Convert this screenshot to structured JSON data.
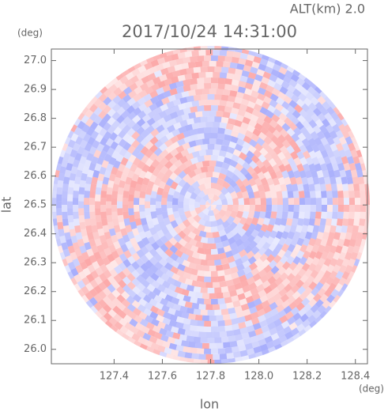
{
  "chart_data": {
    "type": "radar-field",
    "title": "2017/10/24 14:31:00",
    "subtitle": "ALT(km) 2.0",
    "x_label": "lon",
    "y_label": "lat",
    "x_unit": "(deg)",
    "y_unit": "(deg)",
    "xlim": [
      127.14,
      128.45
    ],
    "ylim": [
      25.95,
      27.04
    ],
    "xticks": [
      127.4,
      127.6,
      127.8,
      {
        "value": 128.0,
        "label": "128.0"
      },
      128.2,
      128.4
    ],
    "yticks": [
      {
        "value": 26.0,
        "label": "26.0"
      },
      26.1,
      26.2,
      26.3,
      26.4,
      26.5,
      26.6,
      26.7,
      26.8,
      26.9,
      {
        "value": 27.0,
        "label": "27.0"
      }
    ]
  }
}
